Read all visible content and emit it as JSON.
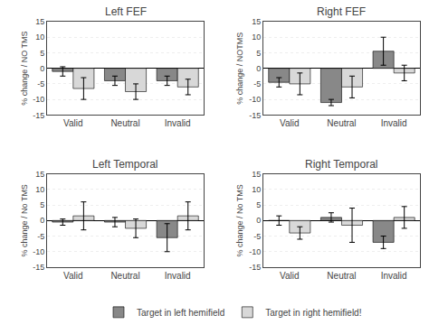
{
  "chart_data": [
    {
      "type": "bar",
      "title": "Left FEF",
      "ylabel": "% change / NO TMS",
      "categories": [
        "Valid",
        "Neutral",
        "Invalid"
      ],
      "series": [
        {
          "name": "Target in left hemifield",
          "color": "#888888",
          "values": [
            -1,
            -4,
            -4
          ],
          "errors": [
            1.5,
            1.5,
            1.5
          ]
        },
        {
          "name": "Target in right hemifield!",
          "color": "#d8d8d8",
          "values": [
            -6.5,
            -7.5,
            -6
          ],
          "errors": [
            3.5,
            2.5,
            2.5
          ]
        }
      ],
      "ylim": [
        -15,
        15
      ],
      "yticks": [
        -15,
        -10,
        -5,
        0,
        5,
        10,
        15
      ],
      "grid": true
    },
    {
      "type": "bar",
      "title": "Right FEF",
      "ylabel": "% change / NOTMS",
      "categories": [
        "Valid",
        "Neutral",
        "Invalid"
      ],
      "series": [
        {
          "name": "Target in left hemifield",
          "color": "#888888",
          "values": [
            -4.5,
            -11,
            5.5
          ],
          "errors": [
            1.5,
            1.0,
            4.5
          ]
        },
        {
          "name": "Target in right hemifield!",
          "color": "#d8d8d8",
          "values": [
            -5,
            -6,
            -1.5
          ],
          "errors": [
            3.5,
            3.5,
            2.5
          ]
        }
      ],
      "ylim": [
        -15,
        15
      ],
      "yticks": [
        -15,
        -10,
        -5,
        0,
        5,
        10,
        15
      ],
      "grid": true
    },
    {
      "type": "bar",
      "title": "Left Temporal",
      "ylabel": "% change / No TMS",
      "categories": [
        "Valid",
        "Neutral",
        "Invalid"
      ],
      "series": [
        {
          "name": "Target in left hemifield",
          "color": "#888888",
          "values": [
            -0.5,
            -0.5,
            -5.5
          ],
          "errors": [
            1.0,
            1.5,
            4.5
          ]
        },
        {
          "name": "Target in right hemifield!",
          "color": "#d8d8d8",
          "values": [
            1.5,
            -2.5,
            1.5
          ],
          "errors": [
            4.5,
            3.0,
            4.5
          ]
        }
      ],
      "ylim": [
        -15,
        15
      ],
      "yticks": [
        -15,
        -10,
        -5,
        0,
        5,
        10,
        15
      ],
      "grid": true
    },
    {
      "type": "bar",
      "title": "Right Temporal",
      "ylabel": "% change / No TMS",
      "categories": [
        "Valid",
        "Neutral",
        "Invalid"
      ],
      "series": [
        {
          "name": "Target in left hemifield",
          "color": "#888888",
          "values": [
            0,
            1,
            -7
          ],
          "errors": [
            1.5,
            1.5,
            2.0
          ]
        },
        {
          "name": "Target in right hemifield!",
          "color": "#d8d8d8",
          "values": [
            -4,
            -1.5,
            1.0
          ],
          "errors": [
            2.0,
            5.5,
            3.5
          ]
        }
      ],
      "ylim": [
        -15,
        15
      ],
      "yticks": [
        -15,
        -10,
        -5,
        0,
        5,
        10,
        15
      ],
      "grid": true
    }
  ]
}
